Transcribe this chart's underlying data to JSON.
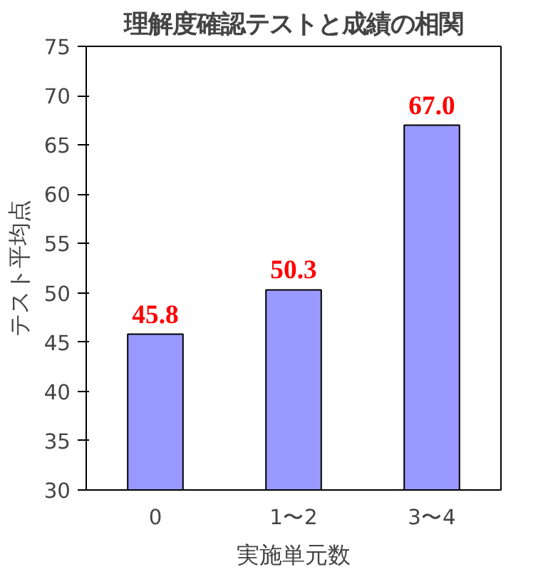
{
  "chart_data": {
    "type": "bar",
    "title": "理解度確認テストと成績の相関",
    "xlabel": "実施単元数",
    "ylabel": "テスト平均点",
    "categories": [
      "0",
      "1〜2",
      "3〜4"
    ],
    "values": [
      45.8,
      50.3,
      67.0
    ],
    "color": "#9999ff",
    "value_labels": [
      "45.8",
      "50.3",
      "67.0"
    ],
    "ylim": [
      30,
      75
    ],
    "yticks": [
      30,
      35,
      40,
      45,
      50,
      55,
      60,
      65,
      70,
      75
    ],
    "grid": false
  }
}
